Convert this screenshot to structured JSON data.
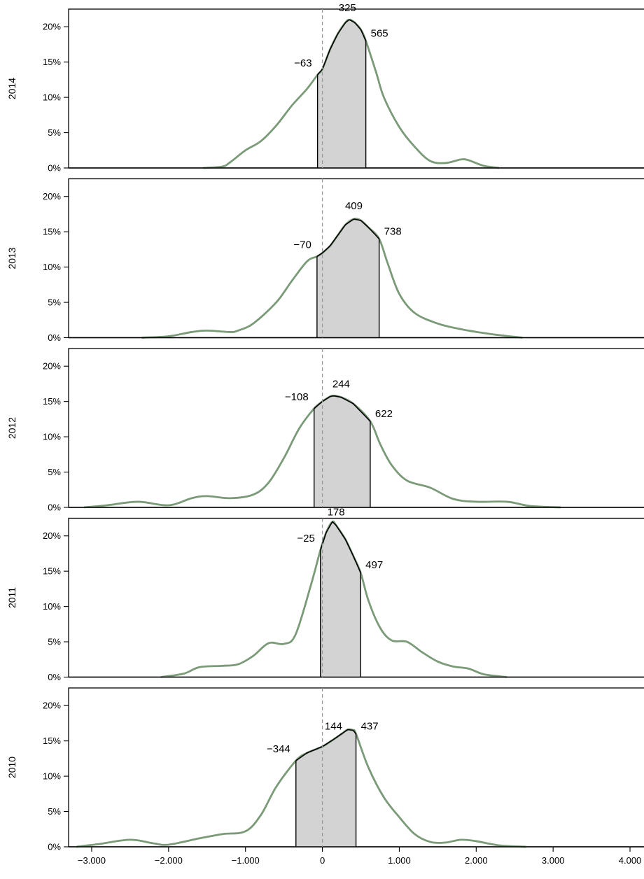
{
  "chart_data": {
    "type": "area",
    "xlim": [
      -3300,
      4200
    ],
    "ylim": [
      0,
      0.225
    ],
    "x_ticks": [
      -3000,
      -2000,
      -1000,
      0,
      1000,
      2000,
      3000,
      4000
    ],
    "x_tick_labels": [
      "−3.000",
      "−2.000",
      "−1.000",
      "0",
      "1.000",
      "2.000",
      "3.000",
      "4.000"
    ],
    "y_ticks": [
      0,
      0.05,
      0.1,
      0.15,
      0.2
    ],
    "y_tick_labels": [
      "0%",
      "5%",
      "10%",
      "15%",
      "20%"
    ],
    "reference_line_x": 0,
    "colors": {
      "curve": "#7a9a78",
      "shade": "#d3d3d3",
      "outline": "#000000",
      "ref_line": "#999999"
    },
    "panels": [
      {
        "year": "2014",
        "lower": -63,
        "median": 325,
        "upper": 565,
        "labels": {
          "lower": "−63",
          "median": "325",
          "upper": "565"
        },
        "density": [
          [
            -1550,
            0
          ],
          [
            -1300,
            0.002
          ],
          [
            -1200,
            0.008
          ],
          [
            -1000,
            0.025
          ],
          [
            -800,
            0.038
          ],
          [
            -600,
            0.06
          ],
          [
            -400,
            0.088
          ],
          [
            -200,
            0.112
          ],
          [
            -63,
            0.132
          ],
          [
            0,
            0.14
          ],
          [
            100,
            0.168
          ],
          [
            200,
            0.19
          ],
          [
            300,
            0.206
          ],
          [
            350,
            0.21
          ],
          [
            420,
            0.206
          ],
          [
            500,
            0.196
          ],
          [
            565,
            0.18
          ],
          [
            700,
            0.135
          ],
          [
            800,
            0.1
          ],
          [
            1000,
            0.058
          ],
          [
            1200,
            0.03
          ],
          [
            1400,
            0.01
          ],
          [
            1600,
            0.007
          ],
          [
            1800,
            0.012
          ],
          [
            1900,
            0.011
          ],
          [
            2100,
            0.003
          ],
          [
            2300,
            0
          ]
        ]
      },
      {
        "year": "2013",
        "lower": -70,
        "median": 409,
        "upper": 738,
        "labels": {
          "lower": "−70",
          "median": "409",
          "upper": "738"
        },
        "density": [
          [
            -2350,
            0
          ],
          [
            -2000,
            0.002
          ],
          [
            -1700,
            0.008
          ],
          [
            -1500,
            0.01
          ],
          [
            -1200,
            0.008
          ],
          [
            -1100,
            0.01
          ],
          [
            -900,
            0.02
          ],
          [
            -600,
            0.05
          ],
          [
            -400,
            0.08
          ],
          [
            -200,
            0.108
          ],
          [
            -70,
            0.115
          ],
          [
            0,
            0.12
          ],
          [
            100,
            0.13
          ],
          [
            200,
            0.145
          ],
          [
            300,
            0.16
          ],
          [
            409,
            0.168
          ],
          [
            500,
            0.166
          ],
          [
            600,
            0.156
          ],
          [
            738,
            0.14
          ],
          [
            850,
            0.105
          ],
          [
            1000,
            0.062
          ],
          [
            1200,
            0.035
          ],
          [
            1500,
            0.02
          ],
          [
            1800,
            0.012
          ],
          [
            2200,
            0.005
          ],
          [
            2600,
            0
          ]
        ]
      },
      {
        "year": "2012",
        "lower": -108,
        "median": 244,
        "upper": 622,
        "labels": {
          "lower": "−108",
          "median": "244",
          "upper": "622"
        },
        "density": [
          [
            -3100,
            0
          ],
          [
            -2800,
            0.003
          ],
          [
            -2400,
            0.008
          ],
          [
            -2000,
            0.003
          ],
          [
            -1700,
            0.013
          ],
          [
            -1500,
            0.016
          ],
          [
            -1200,
            0.013
          ],
          [
            -900,
            0.018
          ],
          [
            -700,
            0.035
          ],
          [
            -500,
            0.07
          ],
          [
            -300,
            0.112
          ],
          [
            -108,
            0.14
          ],
          [
            0,
            0.15
          ],
          [
            100,
            0.157
          ],
          [
            150,
            0.158
          ],
          [
            244,
            0.156
          ],
          [
            400,
            0.147
          ],
          [
            622,
            0.122
          ],
          [
            750,
            0.09
          ],
          [
            900,
            0.06
          ],
          [
            1100,
            0.038
          ],
          [
            1400,
            0.028
          ],
          [
            1700,
            0.012
          ],
          [
            2000,
            0.008
          ],
          [
            2400,
            0.008
          ],
          [
            2700,
            0.002
          ],
          [
            3100,
            0
          ]
        ]
      },
      {
        "year": "2011",
        "lower": -25,
        "median": 178,
        "upper": 497,
        "labels": {
          "lower": "−25",
          "median": "178",
          "upper": "497"
        },
        "density": [
          [
            -2100,
            0
          ],
          [
            -1800,
            0.005
          ],
          [
            -1600,
            0.014
          ],
          [
            -1300,
            0.016
          ],
          [
            -1100,
            0.018
          ],
          [
            -900,
            0.03
          ],
          [
            -700,
            0.048
          ],
          [
            -500,
            0.047
          ],
          [
            -350,
            0.06
          ],
          [
            -150,
            0.13
          ],
          [
            -25,
            0.18
          ],
          [
            50,
            0.205
          ],
          [
            130,
            0.22
          ],
          [
            178,
            0.215
          ],
          [
            300,
            0.195
          ],
          [
            400,
            0.172
          ],
          [
            497,
            0.148
          ],
          [
            600,
            0.108
          ],
          [
            750,
            0.07
          ],
          [
            900,
            0.052
          ],
          [
            1100,
            0.05
          ],
          [
            1300,
            0.035
          ],
          [
            1500,
            0.022
          ],
          [
            1700,
            0.015
          ],
          [
            1900,
            0.012
          ],
          [
            2100,
            0.004
          ],
          [
            2400,
            0
          ]
        ]
      },
      {
        "year": "2010",
        "lower": -344,
        "median": 144,
        "upper": 437,
        "labels": {
          "lower": "−344",
          "median": "144",
          "upper": "437"
        },
        "density": [
          [
            -3200,
            0
          ],
          [
            -2900,
            0.004
          ],
          [
            -2500,
            0.01
          ],
          [
            -2200,
            0.005
          ],
          [
            -2000,
            0.003
          ],
          [
            -1600,
            0.012
          ],
          [
            -1300,
            0.018
          ],
          [
            -1000,
            0.022
          ],
          [
            -800,
            0.045
          ],
          [
            -600,
            0.085
          ],
          [
            -344,
            0.122
          ],
          [
            -200,
            0.133
          ],
          [
            0,
            0.142
          ],
          [
            144,
            0.152
          ],
          [
            250,
            0.16
          ],
          [
            330,
            0.166
          ],
          [
            400,
            0.165
          ],
          [
            437,
            0.16
          ],
          [
            600,
            0.112
          ],
          [
            800,
            0.07
          ],
          [
            1000,
            0.042
          ],
          [
            1200,
            0.018
          ],
          [
            1400,
            0.007
          ],
          [
            1600,
            0.006
          ],
          [
            1800,
            0.01
          ],
          [
            2000,
            0.008
          ],
          [
            2300,
            0.002
          ],
          [
            2650,
            0
          ]
        ]
      }
    ]
  }
}
